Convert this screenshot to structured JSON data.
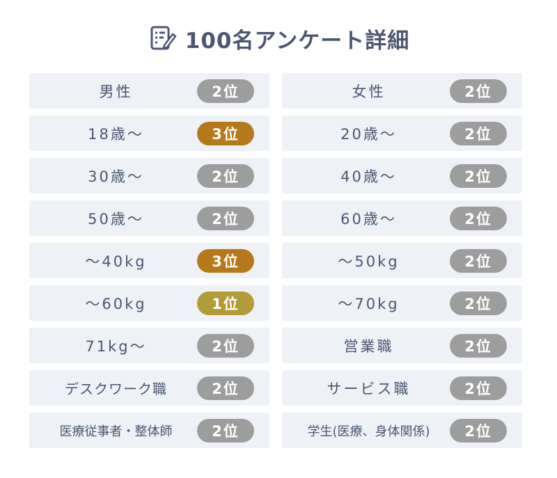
{
  "header": {
    "title": "100名アンケート詳細",
    "icon": "survey-edit-icon"
  },
  "colors": {
    "rank1": "#b19c37",
    "rank2": "#9d9d9d",
    "rank3": "#b5791a",
    "cell_bg": "#eef2f7",
    "text": "#4c5670"
  },
  "rows": [
    {
      "left": {
        "label": "男性",
        "rank": 2,
        "badge": "2位"
      },
      "right": {
        "label": "女性",
        "rank": 2,
        "badge": "2位"
      }
    },
    {
      "left": {
        "label": "18歳～",
        "rank": 3,
        "badge": "3位"
      },
      "right": {
        "label": "20歳～",
        "rank": 2,
        "badge": "2位"
      }
    },
    {
      "left": {
        "label": "30歳～",
        "rank": 2,
        "badge": "2位"
      },
      "right": {
        "label": "40歳～",
        "rank": 2,
        "badge": "2位"
      }
    },
    {
      "left": {
        "label": "50歳～",
        "rank": 2,
        "badge": "2位"
      },
      "right": {
        "label": "60歳～",
        "rank": 2,
        "badge": "2位"
      }
    },
    {
      "left": {
        "label": "～40kg",
        "rank": 3,
        "badge": "3位"
      },
      "right": {
        "label": "～50kg",
        "rank": 2,
        "badge": "2位"
      }
    },
    {
      "left": {
        "label": "～60kg",
        "rank": 1,
        "badge": "1位"
      },
      "right": {
        "label": "～70kg",
        "rank": 2,
        "badge": "2位"
      }
    },
    {
      "left": {
        "label": "71kg～",
        "rank": 2,
        "badge": "2位"
      },
      "right": {
        "label": "営業職",
        "rank": 2,
        "badge": "2位"
      }
    },
    {
      "left": {
        "label": "デスクワーク職",
        "rank": 2,
        "badge": "2位"
      },
      "right": {
        "label": "サービス職",
        "rank": 2,
        "badge": "2位"
      }
    },
    {
      "left": {
        "label": "医療従事者・整体師",
        "rank": 2,
        "badge": "2位"
      },
      "right": {
        "label": "学生(医療、身体関係)",
        "rank": 2,
        "badge": "2位"
      }
    }
  ]
}
